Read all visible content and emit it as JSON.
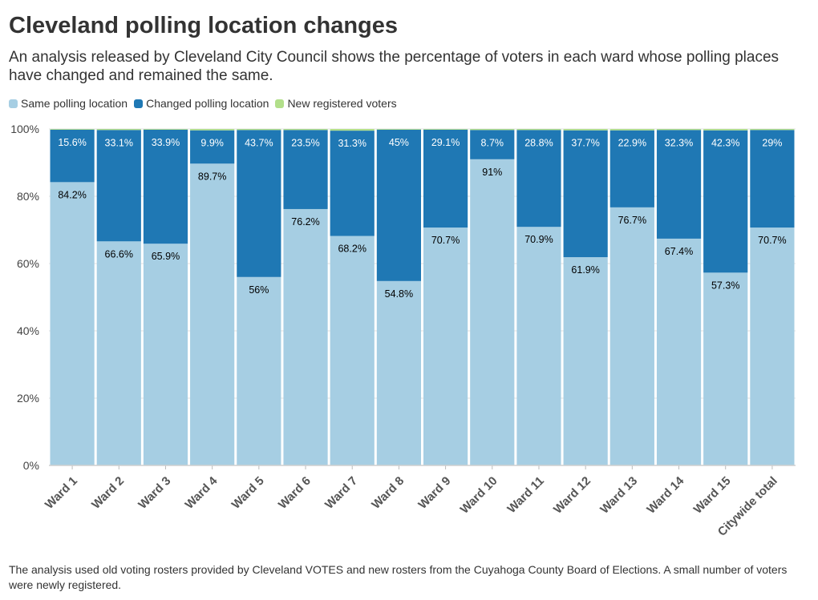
{
  "title": "Cleveland polling location changes",
  "subtitle": "An analysis released by Cleveland City Council shows the percentage of voters in each ward whose polling places have changed and remained the same.",
  "footnote": "The analysis used old voting rosters provided by Cleveland VOTES and new rosters from the Cuyahoga County Board of Elections. A small number of voters were newly registered.",
  "legend": [
    {
      "label": "Same polling location",
      "color": "#a6cee3"
    },
    {
      "label": "Changed polling location",
      "color": "#1f78b4"
    },
    {
      "label": "New registered voters",
      "color": "#b2df8a"
    }
  ],
  "chart_data": {
    "type": "bar",
    "stacked": true,
    "categories": [
      "Ward 1",
      "Ward 2",
      "Ward 3",
      "Ward 4",
      "Ward 5",
      "Ward 6",
      "Ward 7",
      "Ward 8",
      "Ward 9",
      "Ward 10",
      "Ward 11",
      "Ward 12",
      "Ward 13",
      "Ward 14",
      "Ward 15",
      "Citywide total"
    ],
    "series": [
      {
        "name": "Same polling location",
        "color": "#a6cee3",
        "label_color": "#000000",
        "values": [
          84.2,
          66.6,
          65.9,
          89.7,
          56,
          76.2,
          68.2,
          54.8,
          70.7,
          91,
          70.9,
          61.9,
          76.7,
          67.4,
          57.3,
          70.7
        ],
        "labels": [
          "84.2%",
          "66.6%",
          "65.9%",
          "89.7%",
          "56%",
          "76.2%",
          "68.2%",
          "54.8%",
          "70.7%",
          "91%",
          "70.9%",
          "61.9%",
          "76.7%",
          "67.4%",
          "57.3%",
          "70.7%"
        ]
      },
      {
        "name": "Changed polling location",
        "color": "#1f78b4",
        "label_color": "#ffffff",
        "values": [
          15.6,
          33.1,
          33.9,
          9.9,
          43.7,
          23.5,
          31.3,
          45,
          29.1,
          8.7,
          28.8,
          37.7,
          22.9,
          32.3,
          42.3,
          29
        ],
        "labels": [
          "15.6%",
          "33.1%",
          "33.9%",
          "9.9%",
          "43.7%",
          "23.5%",
          "31.3%",
          "45%",
          "29.1%",
          "8.7%",
          "28.8%",
          "37.7%",
          "22.9%",
          "32.3%",
          "42.3%",
          "29%"
        ]
      },
      {
        "name": "New registered voters",
        "color": "#b2df8a",
        "values": [
          0.2,
          0.3,
          0.2,
          0.4,
          0.3,
          0.3,
          0.5,
          0.2,
          0.2,
          0.3,
          0.3,
          0.4,
          0.4,
          0.3,
          0.4,
          0.3
        ]
      }
    ],
    "ylim": [
      0,
      100
    ],
    "yticks": [
      0,
      20,
      40,
      60,
      80,
      100
    ],
    "ytick_labels": [
      "0%",
      "20%",
      "40%",
      "60%",
      "80%",
      "100%"
    ],
    "xlabel": "",
    "ylabel": "",
    "grid": true
  }
}
